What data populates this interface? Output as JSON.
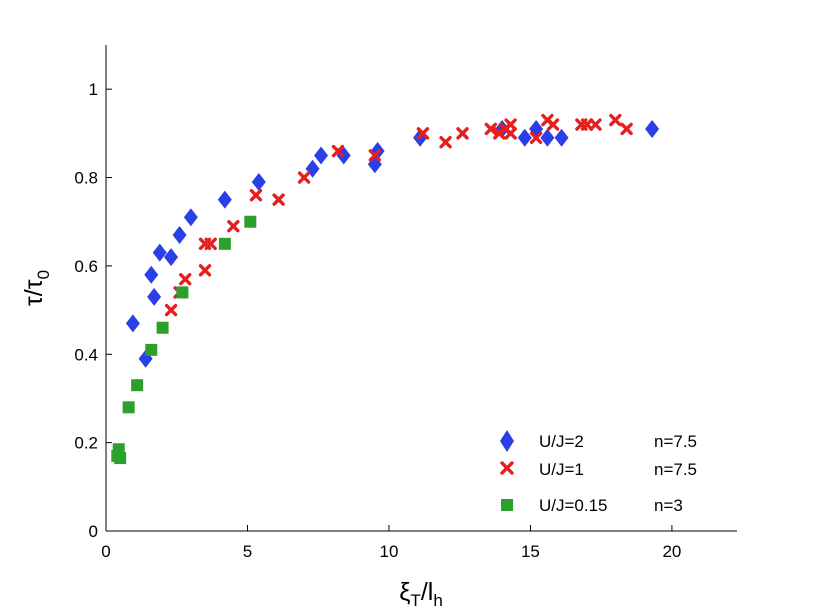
{
  "chart_data": {
    "type": "scatter",
    "title": "",
    "xlabel": {
      "main": "ξ",
      "sub1": "T",
      "mid": "/l",
      "sub2": "h"
    },
    "ylabel": {
      "main": "τ/τ",
      "sub": "0"
    },
    "xlim": [
      0,
      22.3
    ],
    "ylim": [
      0,
      1.1
    ],
    "x_ticks": [
      0,
      5,
      10,
      15,
      20
    ],
    "x_tick_labels": [
      "0",
      "5",
      "10",
      "15",
      "20"
    ],
    "y_ticks": [
      0,
      0.2,
      0.4,
      0.6,
      0.8,
      1
    ],
    "y_tick_labels": [
      "0",
      "0.2",
      "0.4",
      "0.6",
      "0.8",
      "1"
    ],
    "grid": false,
    "legend_position": "bottom-right",
    "series": [
      {
        "name": "U/J=2",
        "extra": "n=7.5",
        "marker": "diamond",
        "color": "#2b3fe6",
        "points": [
          [
            0.95,
            0.47
          ],
          [
            1.4,
            0.39
          ],
          [
            1.6,
            0.58
          ],
          [
            1.7,
            0.53
          ],
          [
            1.9,
            0.63
          ],
          [
            2.3,
            0.62
          ],
          [
            2.6,
            0.67
          ],
          [
            3.0,
            0.71
          ],
          [
            4.2,
            0.75
          ],
          [
            5.4,
            0.79
          ],
          [
            7.3,
            0.82
          ],
          [
            7.6,
            0.85
          ],
          [
            8.4,
            0.85
          ],
          [
            9.5,
            0.83
          ],
          [
            9.6,
            0.86
          ],
          [
            11.1,
            0.89
          ],
          [
            14.0,
            0.91
          ],
          [
            14.8,
            0.89
          ],
          [
            15.2,
            0.91
          ],
          [
            15.6,
            0.89
          ],
          [
            16.1,
            0.89
          ],
          [
            19.3,
            0.91
          ]
        ]
      },
      {
        "name": "U/J=1",
        "extra": "n=7.5",
        "marker": "x",
        "color": "#e81e1e",
        "points": [
          [
            2.3,
            0.5
          ],
          [
            2.6,
            0.54
          ],
          [
            2.8,
            0.57
          ],
          [
            3.5,
            0.59
          ],
          [
            3.5,
            0.65
          ],
          [
            3.7,
            0.65
          ],
          [
            4.5,
            0.69
          ],
          [
            5.3,
            0.76
          ],
          [
            6.1,
            0.75
          ],
          [
            7.0,
            0.8
          ],
          [
            8.2,
            0.86
          ],
          [
            9.5,
            0.85
          ],
          [
            11.2,
            0.9
          ],
          [
            12.0,
            0.88
          ],
          [
            12.6,
            0.9
          ],
          [
            13.6,
            0.91
          ],
          [
            13.9,
            0.9
          ],
          [
            14.1,
            0.91
          ],
          [
            14.3,
            0.92
          ],
          [
            14.3,
            0.9
          ],
          [
            15.2,
            0.89
          ],
          [
            15.6,
            0.93
          ],
          [
            15.8,
            0.92
          ],
          [
            16.8,
            0.92
          ],
          [
            17.0,
            0.92
          ],
          [
            17.3,
            0.92
          ],
          [
            18.0,
            0.93
          ],
          [
            18.4,
            0.91
          ]
        ]
      },
      {
        "name": "U/J=0.15",
        "extra": "n=3",
        "marker": "square",
        "color": "#2ca02c",
        "points": [
          [
            0.4,
            0.17
          ],
          [
            0.45,
            0.185
          ],
          [
            0.5,
            0.165
          ],
          [
            0.8,
            0.28
          ],
          [
            1.1,
            0.33
          ],
          [
            1.6,
            0.41
          ],
          [
            2.0,
            0.46
          ],
          [
            2.7,
            0.54
          ],
          [
            4.2,
            0.65
          ],
          [
            5.1,
            0.7
          ]
        ]
      }
    ]
  }
}
